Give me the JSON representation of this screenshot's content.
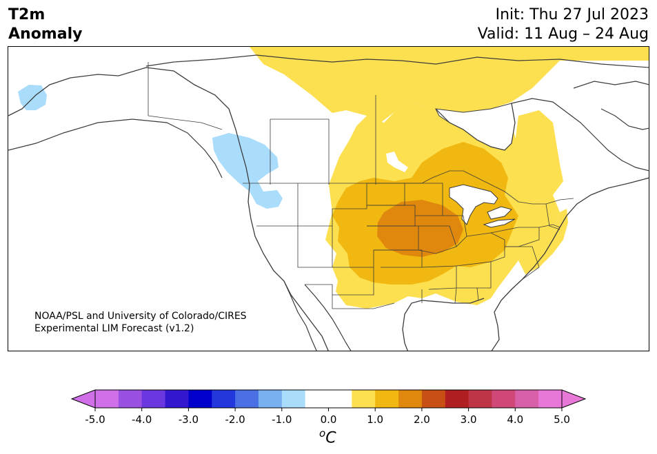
{
  "header": {
    "title_line1": "T2m",
    "title_line2": "Anomaly",
    "init": "Init: Thu 27 Jul 2023",
    "valid": "Valid: 11 Aug – 24 Aug"
  },
  "credit": {
    "line1": "NOAA/PSL and University of Colorado/CIRES",
    "line2": "Experimental LIM Forecast (v1.2)"
  },
  "colorbar": {
    "ticks": [
      "-5.0",
      "-4.0",
      "-3.0",
      "-2.0",
      "-1.0",
      "0.0",
      "1.0",
      "2.0",
      "3.0",
      "4.0",
      "5.0"
    ],
    "unit_sup": "o",
    "unit": "C",
    "colors": [
      "#d070e8",
      "#9a50e0",
      "#6a38de",
      "#3418d0",
      "#0000cc",
      "#2238dc",
      "#4a70e4",
      "#78b0f0",
      "#aadcfc",
      "#ffffff",
      "#ffffff",
      "#fce050",
      "#f0b810",
      "#e0880e",
      "#c85014",
      "#b02020",
      "#c03448",
      "#d04878",
      "#d860a8",
      "#e878d8"
    ],
    "under_color": "#d070e8",
    "over_color": "#e878d8"
  },
  "anomaly_colors": {
    "light_blue": "#aadcfc",
    "yellow": "#fce050",
    "gold": "#f0b810",
    "orange": "#e0880e"
  }
}
